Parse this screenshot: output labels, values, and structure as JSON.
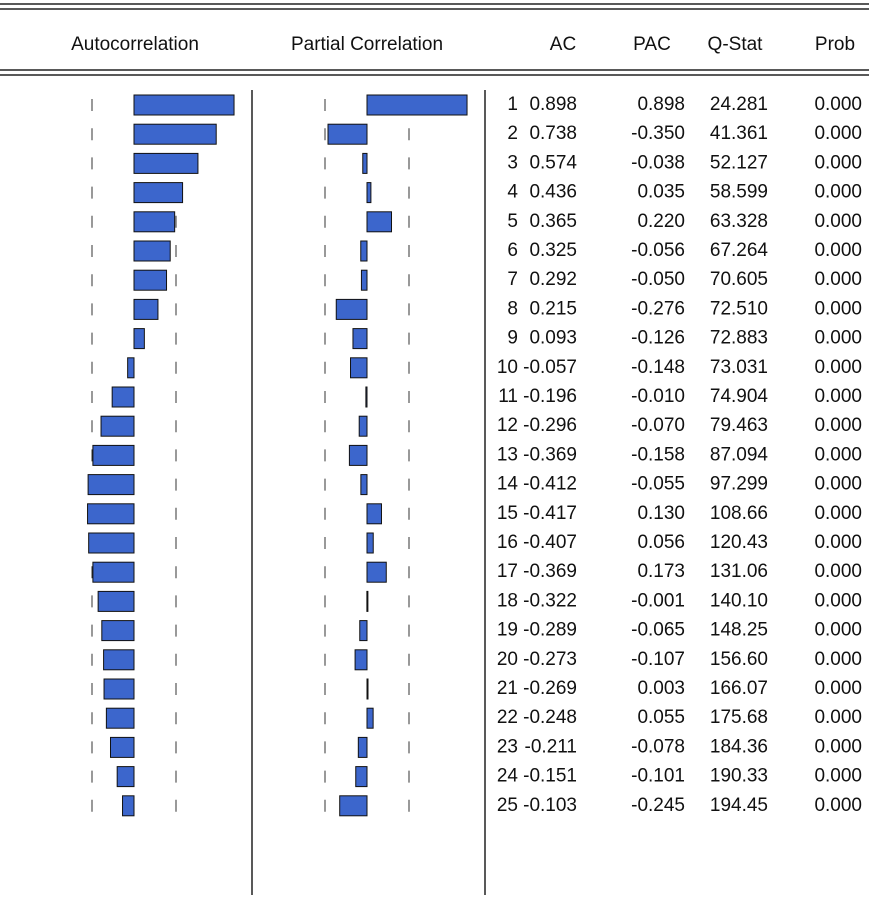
{
  "chart_data": {
    "type": "correlogram",
    "panel_titles": [
      "Autocorrelation",
      "Partial Correlation"
    ],
    "lags": [
      1,
      2,
      3,
      4,
      5,
      6,
      7,
      8,
      9,
      10,
      11,
      12,
      13,
      14,
      15,
      16,
      17,
      18,
      19,
      20,
      21,
      22,
      23,
      24,
      25
    ],
    "series": [
      {
        "name": "AC",
        "color": "#3c66cc",
        "values": [
          0.898,
          0.738,
          0.574,
          0.436,
          0.365,
          0.325,
          0.292,
          0.215,
          0.093,
          -0.057,
          -0.196,
          -0.296,
          -0.369,
          -0.412,
          -0.417,
          -0.407,
          -0.369,
          -0.322,
          -0.289,
          -0.273,
          -0.269,
          -0.248,
          -0.211,
          -0.151,
          -0.103
        ],
        "value_labels": [
          "0.898",
          "0.738",
          "0.574",
          "0.436",
          "0.365",
          "0.325",
          "0.292",
          "0.215",
          "0.093",
          "-0.057",
          "-0.196",
          "-0.296",
          "-0.369",
          "-0.412",
          "-0.417",
          "-0.407",
          "-0.369",
          "-0.322",
          "-0.289",
          "-0.273",
          "-0.269",
          "-0.248",
          "-0.211",
          "-0.151",
          "-0.103"
        ]
      },
      {
        "name": "PAC",
        "color": "#3c66cc",
        "values": [
          0.898,
          -0.35,
          -0.038,
          0.035,
          0.22,
          -0.056,
          -0.05,
          -0.276,
          -0.126,
          -0.148,
          -0.01,
          -0.07,
          -0.158,
          -0.055,
          0.13,
          0.056,
          0.173,
          -0.001,
          -0.065,
          -0.107,
          0.003,
          0.055,
          -0.078,
          -0.101,
          -0.245
        ],
        "value_labels": [
          "0.898",
          "-0.350",
          "-0.038",
          "0.035",
          "0.220",
          "-0.056",
          "-0.050",
          "-0.276",
          "-0.126",
          "-0.148",
          "-0.010",
          "-0.070",
          "-0.158",
          "-0.055",
          "0.130",
          "0.056",
          "0.173",
          "-0.001",
          "-0.065",
          "-0.107",
          "0.003",
          "0.055",
          "-0.078",
          "-0.101",
          "-0.245"
        ]
      },
      {
        "name": "Q-Stat",
        "values": [
          24.281,
          41.361,
          52.127,
          58.599,
          63.328,
          67.264,
          70.605,
          72.51,
          72.883,
          73.031,
          74.904,
          79.463,
          87.094,
          97.299,
          108.66,
          120.43,
          131.06,
          140.1,
          148.25,
          156.6,
          166.07,
          175.68,
          184.36,
          190.33,
          194.45
        ],
        "value_labels": [
          "24.281",
          "41.361",
          "52.127",
          "58.599",
          "63.328",
          "67.264",
          "70.605",
          "72.510",
          "72.883",
          "73.031",
          "74.904",
          "79.463",
          "87.094",
          "97.299",
          "108.66",
          "120.43",
          "131.06",
          "140.10",
          "148.25",
          "156.60",
          "166.07",
          "175.68",
          "184.36",
          "190.33",
          "194.45"
        ]
      },
      {
        "name": "Prob",
        "values": [
          0,
          0,
          0,
          0,
          0,
          0,
          0,
          0,
          0,
          0,
          0,
          0,
          0,
          0,
          0,
          0,
          0,
          0,
          0,
          0,
          0,
          0,
          0,
          0,
          0
        ],
        "value_labels": [
          "0.000",
          "0.000",
          "0.000",
          "0.000",
          "0.000",
          "0.000",
          "0.000",
          "0.000",
          "0.000",
          "0.000",
          "0.000",
          "0.000",
          "0.000",
          "0.000",
          "0.000",
          "0.000",
          "0.000",
          "0.000",
          "0.000",
          "0.000",
          "0.000",
          "0.000",
          "0.000",
          "0.000",
          "0.000"
        ]
      }
    ]
  }
}
